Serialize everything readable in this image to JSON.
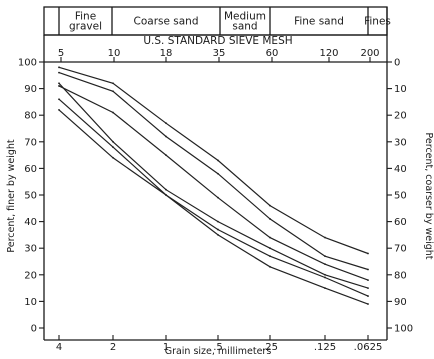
{
  "chart_data": {
    "type": "line",
    "size_bands": [
      {
        "label_lines": [
          "Fine",
          "gravel"
        ]
      },
      {
        "label_lines": [
          "Coarse sand"
        ]
      },
      {
        "label_lines": [
          "Medium",
          "sand"
        ]
      },
      {
        "label_lines": [
          "Fine sand"
        ]
      },
      {
        "label_lines": [
          "Fines"
        ]
      }
    ],
    "top_axis": {
      "title": "U.S. STANDARD SIEVE MESH",
      "ticks": [
        "5",
        "10",
        "18",
        "35",
        "60",
        "120",
        "200"
      ]
    },
    "x_axis": {
      "title": "Grain size, millimeters",
      "ticks": [
        "4",
        "2",
        "1",
        ".5",
        ".25",
        ".125",
        ".0625"
      ]
    },
    "y_left": {
      "title": "Percent, finer by weight",
      "ticks": [
        "0",
        "10",
        "20",
        "30",
        "40",
        "50",
        "60",
        "70",
        "80",
        "90",
        "100"
      ],
      "ylim": [
        0,
        100
      ]
    },
    "y_right": {
      "title": "Percent, coarser by weight",
      "ticks": [
        "0",
        "10",
        "20",
        "30",
        "40",
        "50",
        "60",
        "70",
        "80",
        "90",
        "100"
      ],
      "ylim": [
        100,
        0
      ]
    },
    "x": [
      "4",
      "2",
      "1",
      ".5",
      ".25",
      ".125",
      ".0625"
    ],
    "series": [
      {
        "values": [
          98,
          92,
          77,
          63,
          46,
          34,
          28
        ]
      },
      {
        "values": [
          96,
          89,
          72,
          58,
          41,
          27,
          22
        ]
      },
      {
        "values": [
          91,
          81,
          65,
          49,
          34,
          24,
          18
        ]
      },
      {
        "values": [
          92,
          70,
          52,
          40,
          30,
          20,
          15
        ]
      },
      {
        "values": [
          86,
          68,
          50,
          37,
          27,
          19,
          12
        ]
      },
      {
        "values": [
          82,
          64,
          50,
          35,
          23,
          15,
          9
        ]
      }
    ]
  }
}
